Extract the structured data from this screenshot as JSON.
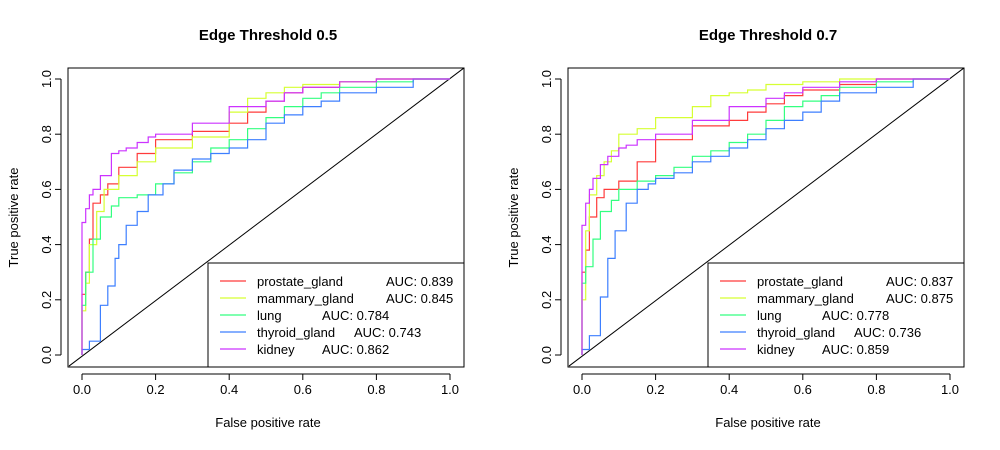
{
  "colors": {
    "prostate_gland": "#ff3b3b",
    "mammary_gland": "#d6ff33",
    "lung": "#33ff80",
    "thyroid_gland": "#3d7fff",
    "kidney": "#cc33ff",
    "diagonal": "#000000"
  },
  "chart_data": [
    {
      "type": "line",
      "title": "Edge Threshold 0.5",
      "xlabel": "False positive rate",
      "ylabel": "True positive rate",
      "xlim": [
        0,
        1
      ],
      "ylim": [
        0,
        1
      ],
      "xticks": [
        "0.0",
        "0.2",
        "0.4",
        "0.6",
        "0.8",
        "1.0"
      ],
      "yticks": [
        "0.0",
        "0.2",
        "0.4",
        "0.6",
        "0.8",
        "1.0"
      ],
      "grid": false,
      "legend_position": "bottom-right",
      "diagonal": true,
      "series": [
        {
          "name": "prostate_gland",
          "legend": "prostate_gland",
          "auc": "AUC: 0.839",
          "x": [
            0,
            0.01,
            0.02,
            0.03,
            0.05,
            0.07,
            0.1,
            0.15,
            0.2,
            0.3,
            0.4,
            0.45,
            0.5,
            0.55,
            0.6,
            0.7,
            0.8,
            0.9,
            1.0
          ],
          "y": [
            0,
            0.22,
            0.3,
            0.42,
            0.55,
            0.58,
            0.62,
            0.68,
            0.73,
            0.78,
            0.81,
            0.84,
            0.88,
            0.92,
            0.95,
            0.97,
            0.99,
            1.0,
            1.0
          ]
        },
        {
          "name": "mammary_gland",
          "legend": "mammary_gland",
          "auc": "AUC: 0.845",
          "x": [
            0,
            0.01,
            0.02,
            0.04,
            0.06,
            0.1,
            0.15,
            0.2,
            0.3,
            0.4,
            0.45,
            0.5,
            0.55,
            0.6,
            0.7,
            0.8,
            0.9,
            1.0
          ],
          "y": [
            0,
            0.16,
            0.26,
            0.4,
            0.52,
            0.6,
            0.65,
            0.7,
            0.75,
            0.79,
            0.88,
            0.93,
            0.95,
            0.97,
            0.98,
            0.99,
            1.0,
            1.0
          ]
        },
        {
          "name": "lung",
          "legend": "lung",
          "auc": "AUC: 0.784",
          "x": [
            0,
            0.01,
            0.03,
            0.05,
            0.08,
            0.1,
            0.15,
            0.2,
            0.25,
            0.3,
            0.35,
            0.4,
            0.45,
            0.5,
            0.55,
            0.6,
            0.65,
            0.7,
            0.8,
            0.9,
            1.0
          ],
          "y": [
            0,
            0.18,
            0.3,
            0.42,
            0.5,
            0.54,
            0.57,
            0.58,
            0.62,
            0.66,
            0.7,
            0.75,
            0.78,
            0.82,
            0.86,
            0.9,
            0.93,
            0.95,
            0.97,
            0.99,
            1.0
          ]
        },
        {
          "name": "thyroid_gland",
          "legend": "thyroid_gland",
          "auc": "AUC: 0.743",
          "x": [
            0,
            0.02,
            0.05,
            0.07,
            0.09,
            0.1,
            0.12,
            0.15,
            0.18,
            0.22,
            0.25,
            0.3,
            0.35,
            0.4,
            0.45,
            0.5,
            0.55,
            0.6,
            0.65,
            0.7,
            0.8,
            0.9,
            1.0
          ],
          "y": [
            0,
            0.02,
            0.05,
            0.18,
            0.25,
            0.35,
            0.4,
            0.47,
            0.52,
            0.58,
            0.62,
            0.67,
            0.71,
            0.73,
            0.75,
            0.78,
            0.84,
            0.87,
            0.9,
            0.92,
            0.95,
            0.97,
            1.0
          ]
        },
        {
          "name": "kidney",
          "legend": "kidney",
          "auc": "AUC: 0.862",
          "x": [
            0,
            0.01,
            0.02,
            0.03,
            0.05,
            0.08,
            0.1,
            0.12,
            0.15,
            0.18,
            0.2,
            0.3,
            0.4,
            0.5,
            0.55,
            0.6,
            0.7,
            0.8,
            0.9,
            1.0
          ],
          "y": [
            0,
            0.48,
            0.53,
            0.58,
            0.6,
            0.65,
            0.73,
            0.74,
            0.75,
            0.77,
            0.79,
            0.8,
            0.84,
            0.9,
            0.92,
            0.95,
            0.97,
            0.99,
            1.0,
            1.0
          ]
        }
      ]
    },
    {
      "type": "line",
      "title": "Edge Threshold 0.7",
      "xlabel": "False positive rate",
      "ylabel": "True positive rate",
      "xlim": [
        0,
        1
      ],
      "ylim": [
        0,
        1
      ],
      "xticks": [
        "0.0",
        "0.2",
        "0.4",
        "0.6",
        "0.8",
        "1.0"
      ],
      "yticks": [
        "0.0",
        "0.2",
        "0.4",
        "0.6",
        "0.8",
        "1.0"
      ],
      "grid": false,
      "legend_position": "bottom-right",
      "diagonal": true,
      "series": [
        {
          "name": "prostate_gland",
          "legend": "prostate_gland",
          "auc": "AUC: 0.837",
          "x": [
            0,
            0.01,
            0.02,
            0.04,
            0.06,
            0.1,
            0.15,
            0.2,
            0.3,
            0.4,
            0.45,
            0.5,
            0.55,
            0.6,
            0.7,
            0.8,
            0.9,
            1.0
          ],
          "y": [
            0,
            0.3,
            0.38,
            0.5,
            0.57,
            0.6,
            0.63,
            0.7,
            0.78,
            0.83,
            0.85,
            0.88,
            0.91,
            0.94,
            0.96,
            0.98,
            1.0,
            1.0
          ]
        },
        {
          "name": "mammary_gland",
          "legend": "mammary_gland",
          "auc": "AUC: 0.875",
          "x": [
            0,
            0.01,
            0.02,
            0.04,
            0.06,
            0.08,
            0.1,
            0.15,
            0.2,
            0.3,
            0.35,
            0.4,
            0.45,
            0.5,
            0.6,
            0.7,
            0.8,
            0.9,
            1.0
          ],
          "y": [
            0,
            0.2,
            0.45,
            0.58,
            0.65,
            0.7,
            0.74,
            0.8,
            0.82,
            0.86,
            0.9,
            0.94,
            0.95,
            0.96,
            0.98,
            0.99,
            1.0,
            1.0,
            1.0
          ]
        },
        {
          "name": "lung",
          "legend": "lung",
          "auc": "AUC: 0.778",
          "x": [
            0,
            0.01,
            0.03,
            0.05,
            0.08,
            0.1,
            0.15,
            0.2,
            0.25,
            0.3,
            0.35,
            0.4,
            0.45,
            0.5,
            0.55,
            0.6,
            0.65,
            0.7,
            0.8,
            0.9,
            1.0
          ],
          "y": [
            0,
            0.26,
            0.32,
            0.42,
            0.52,
            0.56,
            0.6,
            0.63,
            0.65,
            0.68,
            0.72,
            0.74,
            0.77,
            0.8,
            0.85,
            0.9,
            0.92,
            0.94,
            0.97,
            0.99,
            1.0
          ]
        },
        {
          "name": "thyroid_gland",
          "legend": "thyroid_gland",
          "auc": "AUC: 0.736",
          "x": [
            0,
            0.02,
            0.05,
            0.07,
            0.09,
            0.12,
            0.15,
            0.18,
            0.2,
            0.25,
            0.3,
            0.35,
            0.4,
            0.45,
            0.5,
            0.55,
            0.6,
            0.65,
            0.7,
            0.8,
            0.9,
            1.0
          ],
          "y": [
            0,
            0.02,
            0.07,
            0.21,
            0.35,
            0.45,
            0.55,
            0.6,
            0.62,
            0.64,
            0.66,
            0.7,
            0.72,
            0.75,
            0.78,
            0.82,
            0.85,
            0.88,
            0.92,
            0.95,
            0.97,
            1.0
          ]
        },
        {
          "name": "kidney",
          "legend": "kidney",
          "auc": "AUC: 0.859",
          "x": [
            0,
            0.01,
            0.02,
            0.03,
            0.05,
            0.07,
            0.1,
            0.12,
            0.15,
            0.2,
            0.3,
            0.4,
            0.5,
            0.55,
            0.6,
            0.7,
            0.8,
            0.9,
            1.0
          ],
          "y": [
            0,
            0.47,
            0.55,
            0.6,
            0.64,
            0.69,
            0.72,
            0.75,
            0.76,
            0.78,
            0.8,
            0.85,
            0.9,
            0.93,
            0.95,
            0.97,
            0.99,
            1.0,
            1.0
          ]
        }
      ]
    }
  ]
}
